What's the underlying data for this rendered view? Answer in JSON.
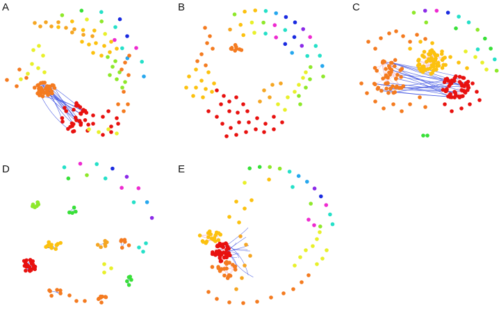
{
  "figure": {
    "panels": [
      {
        "id": "A",
        "label": "A"
      },
      {
        "id": "B",
        "label": "B"
      },
      {
        "id": "C",
        "label": "C"
      },
      {
        "id": "D",
        "label": "D"
      },
      {
        "id": "E",
        "label": "E"
      }
    ]
  },
  "palette": {
    "red": "#e8110f",
    "orange_red": "#f2581a",
    "orange": "#f47b20",
    "amber": "#f5a623",
    "gold": "#fcc10f",
    "yellow": "#e8f02a",
    "lime": "#8ee82a",
    "green": "#38e038",
    "cyan": "#25e0c8",
    "sky": "#26a7ee",
    "blue": "#1a2be0",
    "violet": "#8b2ae8",
    "magenta": "#ee2ad0",
    "edge_blue": "#3b4fe0",
    "edge_pink": "#f3b8c8"
  }
}
